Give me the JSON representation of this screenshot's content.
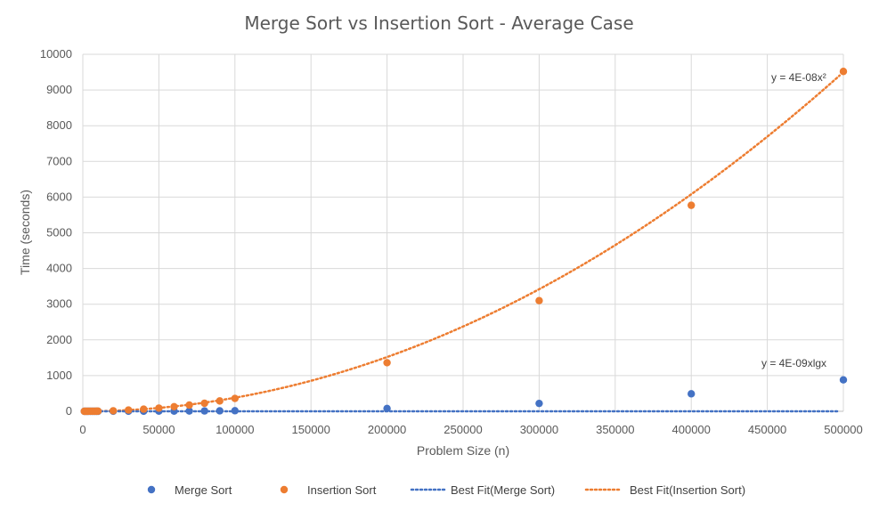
{
  "chart_data": {
    "type": "scatter",
    "title": "Merge Sort vs Insertion Sort - Average Case",
    "xlabel": "Problem Size (n)",
    "ylabel": "Time (seconds)",
    "xlim": [
      0,
      500000
    ],
    "ylim": [
      0,
      10000
    ],
    "xticks": [
      "0",
      "50000",
      "100000",
      "150000",
      "200000",
      "250000",
      "300000",
      "350000",
      "400000",
      "450000",
      "500000"
    ],
    "yticks": [
      "0",
      "1000",
      "2000",
      "3000",
      "4000",
      "5000",
      "6000",
      "7000",
      "8000",
      "9000",
      "10000"
    ],
    "grid": true,
    "legend_position": "bottom",
    "series": [
      {
        "name": "Merge Sort",
        "kind": "points",
        "color": "#4472C4",
        "x": [
          1000,
          2000,
          3000,
          4000,
          5000,
          6000,
          7000,
          8000,
          9000,
          10000,
          20000,
          30000,
          40000,
          50000,
          60000,
          70000,
          80000,
          90000,
          100000,
          200000,
          300000,
          400000,
          500000
        ],
        "y": [
          0,
          0,
          0,
          0,
          0,
          0,
          0,
          0,
          0,
          0,
          1,
          2,
          3,
          4,
          6,
          8,
          10,
          13,
          16,
          80,
          220,
          490,
          880
        ]
      },
      {
        "name": "Insertion Sort",
        "kind": "points",
        "color": "#ED7D31",
        "x": [
          1000,
          2000,
          3000,
          4000,
          5000,
          6000,
          7000,
          8000,
          9000,
          10000,
          20000,
          30000,
          40000,
          50000,
          60000,
          70000,
          80000,
          90000,
          100000,
          200000,
          300000,
          400000,
          500000
        ],
        "y": [
          0,
          0,
          0,
          1,
          1,
          1,
          2,
          2,
          3,
          4,
          15,
          35,
          60,
          90,
          130,
          175,
          225,
          290,
          360,
          1360,
          3100,
          5770,
          9520
        ]
      },
      {
        "name": "Best Fit(Merge Sort)",
        "kind": "trendline",
        "color": "#4472C4",
        "equation": "y = 4E-09xlgx"
      },
      {
        "name": "Best Fit(Insertion Sort)",
        "kind": "trendline",
        "color": "#ED7D31",
        "equation": "y = 4E-08x²"
      }
    ]
  }
}
